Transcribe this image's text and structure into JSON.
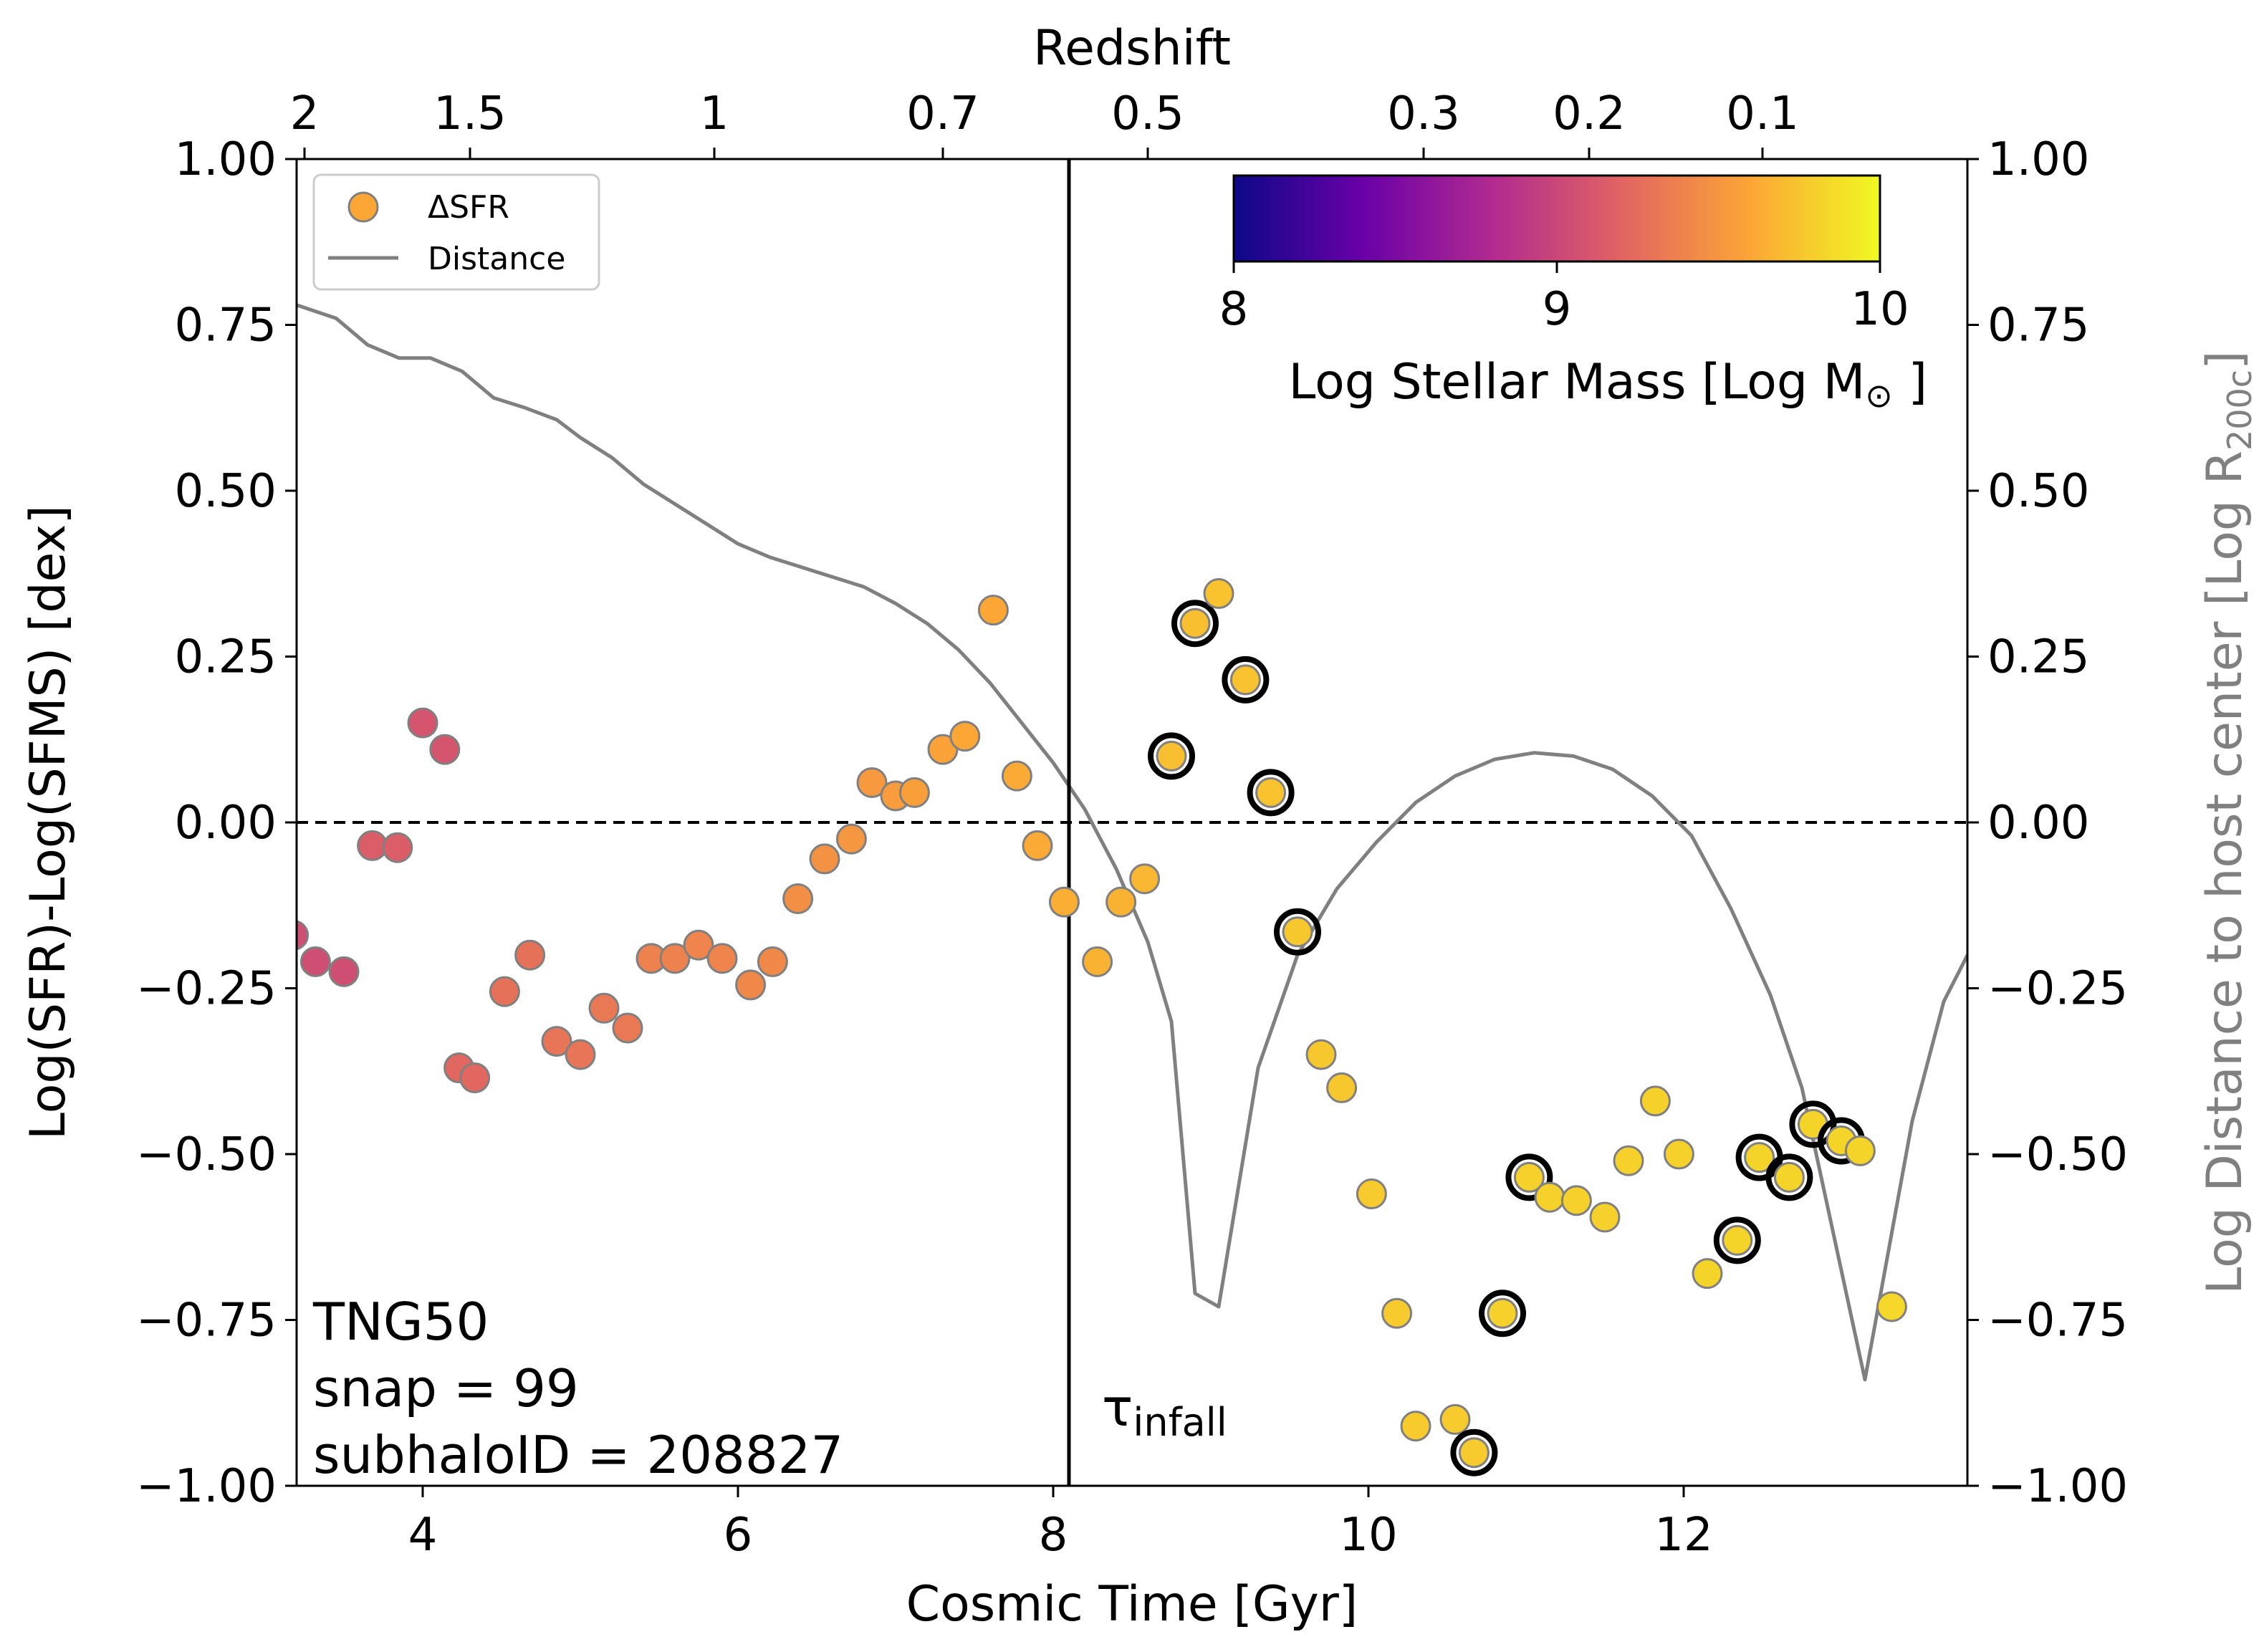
{
  "chart_data": {
    "type": "scatter",
    "title": "",
    "xlabel": "Cosmic Time [Gyr]",
    "ylabel": "Log(SFR)-Log(SFMS) [dex]",
    "y2label": "Log Distance to host center [Log R",
    "y2label_sub": "200c",
    "y2label_end": "]",
    "top_xlabel": "Redshift",
    "xlim": [
      3.2,
      13.8
    ],
    "ylim": [
      -1.0,
      1.0
    ],
    "y2lim": [
      -1.0,
      1.0
    ],
    "x_ticks": [
      4,
      6,
      8,
      10,
      12
    ],
    "x_tick_labels": [
      "4",
      "6",
      "8",
      "10",
      "12"
    ],
    "y_ticks": [
      1.0,
      0.75,
      0.5,
      0.25,
      0.0,
      -0.25,
      -0.5,
      -0.75,
      -1.0
    ],
    "y_tick_labels": [
      "1.00",
      "0.75",
      "0.50",
      "0.25",
      "0.00",
      "−0.25",
      "−0.50",
      "−0.75",
      "−1.00"
    ],
    "redshift_ticks": [
      {
        "label": "2",
        "t": 3.25
      },
      {
        "label": "1.5",
        "t": 4.3
      },
      {
        "label": "1",
        "t": 5.85
      },
      {
        "label": "0.7",
        "t": 7.3
      },
      {
        "label": "0.5",
        "t": 8.6
      },
      {
        "label": "0.3",
        "t": 10.35
      },
      {
        "label": "0.2",
        "t": 11.4
      },
      {
        "label": "0.1",
        "t": 12.5
      }
    ],
    "infall_time": 8.1,
    "infall_label": "τ",
    "infall_label_sub": "infall",
    "zero_line": 0.0,
    "legend": {
      "scatter": "ΔSFR",
      "line": "Distance"
    },
    "colorbar": {
      "label": "Log Stellar Mass [Log M",
      "label_sub": "⊙",
      "label_end": " ]",
      "range": [
        8,
        10
      ],
      "ticks": [
        "8",
        "9",
        "10"
      ],
      "colormap": [
        "#0d0887",
        "#6a00a8",
        "#b12a90",
        "#e16462",
        "#fca636",
        "#f0f921"
      ]
    },
    "annotation": [
      "TNG50",
      "snap = 99",
      "subhaloID = 208827"
    ],
    "distance_series": {
      "name": "Distance",
      "color": "#808080",
      "x": [
        3.2,
        3.45,
        3.65,
        3.85,
        4.05,
        4.25,
        4.45,
        4.65,
        4.85,
        5.0,
        5.2,
        5.4,
        5.6,
        5.8,
        6.0,
        6.2,
        6.4,
        6.6,
        6.8,
        7.0,
        7.2,
        7.4,
        7.6,
        7.8,
        8.0,
        8.2,
        8.4,
        8.6,
        8.75,
        8.9,
        9.05,
        9.3,
        9.55,
        9.8,
        10.05,
        10.3,
        10.55,
        10.8,
        11.05,
        11.3,
        11.55,
        11.8,
        12.05,
        12.3,
        12.55,
        12.75,
        12.95,
        13.15,
        13.45,
        13.65,
        13.8
      ],
      "y": [
        0.78,
        0.76,
        0.72,
        0.7,
        0.7,
        0.68,
        0.64,
        0.625,
        0.607,
        0.58,
        0.55,
        0.51,
        0.48,
        0.45,
        0.42,
        0.4,
        0.385,
        0.37,
        0.355,
        0.33,
        0.3,
        0.26,
        0.21,
        0.15,
        0.09,
        0.02,
        -0.07,
        -0.18,
        -0.3,
        -0.71,
        -0.73,
        -0.37,
        -0.2,
        -0.1,
        -0.03,
        0.03,
        0.07,
        0.095,
        0.105,
        0.1,
        0.08,
        0.04,
        -0.02,
        -0.13,
        -0.26,
        -0.4,
        -0.62,
        -0.84,
        -0.45,
        -0.27,
        -0.2
      ]
    },
    "series": [
      {
        "name": "ΔSFR",
        "points": [
          {
            "x": 3.18,
            "y": -0.17,
            "m": 9.05,
            "h": false
          },
          {
            "x": 3.32,
            "y": -0.21,
            "m": 9.05,
            "h": false
          },
          {
            "x": 3.5,
            "y": -0.225,
            "m": 9.05,
            "h": false
          },
          {
            "x": 3.68,
            "y": -0.035,
            "m": 9.15,
            "h": false
          },
          {
            "x": 3.84,
            "y": -0.038,
            "m": 9.15,
            "h": false
          },
          {
            "x": 4.0,
            "y": 0.15,
            "m": 9.1,
            "h": false
          },
          {
            "x": 4.14,
            "y": 0.11,
            "m": 9.1,
            "h": false
          },
          {
            "x": 4.23,
            "y": -0.37,
            "m": 9.22,
            "h": false
          },
          {
            "x": 4.33,
            "y": -0.385,
            "m": 9.22,
            "h": false
          },
          {
            "x": 4.52,
            "y": -0.255,
            "m": 9.28,
            "h": false
          },
          {
            "x": 4.68,
            "y": -0.2,
            "m": 9.28,
            "h": false
          },
          {
            "x": 4.85,
            "y": -0.33,
            "m": 9.3,
            "h": false
          },
          {
            "x": 5.0,
            "y": -0.35,
            "m": 9.3,
            "h": false
          },
          {
            "x": 5.15,
            "y": -0.28,
            "m": 9.32,
            "h": false
          },
          {
            "x": 5.3,
            "y": -0.31,
            "m": 9.32,
            "h": false
          },
          {
            "x": 5.45,
            "y": -0.205,
            "m": 9.38,
            "h": false
          },
          {
            "x": 5.6,
            "y": -0.205,
            "m": 9.38,
            "h": false
          },
          {
            "x": 5.75,
            "y": -0.185,
            "m": 9.4,
            "h": false
          },
          {
            "x": 5.9,
            "y": -0.205,
            "m": 9.4,
            "h": false
          },
          {
            "x": 6.08,
            "y": -0.245,
            "m": 9.42,
            "h": false
          },
          {
            "x": 6.22,
            "y": -0.21,
            "m": 9.42,
            "h": false
          },
          {
            "x": 6.38,
            "y": -0.115,
            "m": 9.46,
            "h": false
          },
          {
            "x": 6.55,
            "y": -0.055,
            "m": 9.48,
            "h": false
          },
          {
            "x": 6.72,
            "y": -0.025,
            "m": 9.5,
            "h": false
          },
          {
            "x": 6.85,
            "y": 0.06,
            "m": 9.52,
            "h": false
          },
          {
            "x": 7.0,
            "y": 0.04,
            "m": 9.54,
            "h": false
          },
          {
            "x": 7.12,
            "y": 0.045,
            "m": 9.56,
            "h": false
          },
          {
            "x": 7.3,
            "y": 0.11,
            "m": 9.58,
            "h": false
          },
          {
            "x": 7.44,
            "y": 0.13,
            "m": 9.6,
            "h": false
          },
          {
            "x": 7.62,
            "y": 0.32,
            "m": 9.6,
            "h": false
          },
          {
            "x": 7.77,
            "y": 0.07,
            "m": 9.62,
            "h": false
          },
          {
            "x": 7.9,
            "y": -0.035,
            "m": 9.62,
            "h": false
          },
          {
            "x": 8.07,
            "y": -0.12,
            "m": 9.64,
            "h": false
          },
          {
            "x": 8.28,
            "y": -0.21,
            "m": 9.66,
            "h": false
          },
          {
            "x": 8.43,
            "y": -0.12,
            "m": 9.66,
            "h": false
          },
          {
            "x": 8.58,
            "y": -0.085,
            "m": 9.68,
            "h": false
          },
          {
            "x": 8.75,
            "y": 0.1,
            "m": 9.72,
            "h": true
          },
          {
            "x": 8.9,
            "y": 0.3,
            "m": 9.72,
            "h": true
          },
          {
            "x": 9.05,
            "y": 0.345,
            "m": 9.74,
            "h": false
          },
          {
            "x": 9.22,
            "y": 0.215,
            "m": 9.74,
            "h": true
          },
          {
            "x": 9.38,
            "y": 0.045,
            "m": 9.74,
            "h": true
          },
          {
            "x": 9.55,
            "y": -0.165,
            "m": 9.76,
            "h": true
          },
          {
            "x": 9.7,
            "y": -0.35,
            "m": 9.76,
            "h": false
          },
          {
            "x": 9.83,
            "y": -0.4,
            "m": 9.76,
            "h": false
          },
          {
            "x": 10.02,
            "y": -0.56,
            "m": 9.78,
            "h": false
          },
          {
            "x": 10.18,
            "y": -0.74,
            "m": 9.78,
            "h": false
          },
          {
            "x": 10.3,
            "y": -0.91,
            "m": 9.78,
            "h": false
          },
          {
            "x": 10.55,
            "y": -0.9,
            "m": 9.78,
            "h": false
          },
          {
            "x": 10.67,
            "y": -0.95,
            "m": 9.78,
            "h": true
          },
          {
            "x": 10.85,
            "y": -0.74,
            "m": 9.8,
            "h": true
          },
          {
            "x": 11.02,
            "y": -0.535,
            "m": 9.8,
            "h": true
          },
          {
            "x": 11.15,
            "y": -0.565,
            "m": 9.8,
            "h": false
          },
          {
            "x": 11.32,
            "y": -0.57,
            "m": 9.8,
            "h": false
          },
          {
            "x": 11.5,
            "y": -0.595,
            "m": 9.8,
            "h": false
          },
          {
            "x": 11.65,
            "y": -0.51,
            "m": 9.8,
            "h": false
          },
          {
            "x": 11.82,
            "y": -0.42,
            "m": 9.8,
            "h": false
          },
          {
            "x": 11.97,
            "y": -0.5,
            "m": 9.8,
            "h": false
          },
          {
            "x": 12.15,
            "y": -0.68,
            "m": 9.82,
            "h": false
          },
          {
            "x": 12.34,
            "y": -0.63,
            "m": 9.82,
            "h": true
          },
          {
            "x": 12.48,
            "y": -0.505,
            "m": 9.82,
            "h": true
          },
          {
            "x": 12.67,
            "y": -0.535,
            "m": 9.82,
            "h": true
          },
          {
            "x": 12.82,
            "y": -0.455,
            "m": 9.82,
            "h": true
          },
          {
            "x": 13.0,
            "y": -0.48,
            "m": 9.82,
            "h": true
          },
          {
            "x": 13.12,
            "y": -0.495,
            "m": 9.82,
            "h": false
          },
          {
            "x": 13.32,
            "y": -0.73,
            "m": 9.84,
            "h": false
          }
        ]
      }
    ]
  }
}
